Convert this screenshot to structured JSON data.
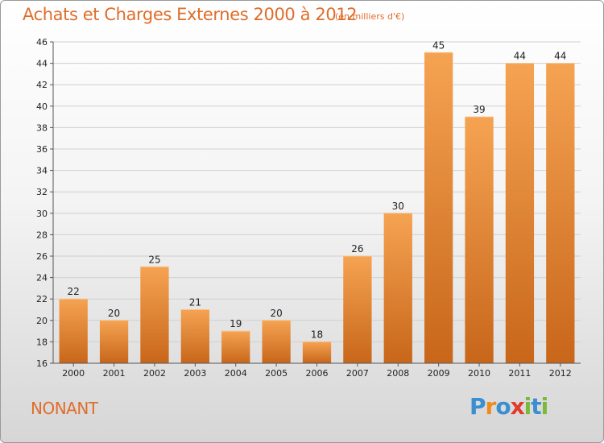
{
  "header": {
    "title": "Achats et Charges Externes 2000 à 2012",
    "subtitle": "(en milliers d'€)"
  },
  "footer": {
    "location": "NONANT",
    "logo_letters": [
      "P",
      "r",
      "o",
      "x",
      "i",
      "t",
      "i"
    ],
    "logo_colors": [
      "#3a8fd1",
      "#f08a1e",
      "#3a8fd1",
      "#e23b2e",
      "#7cb83a",
      "#3a8fd1",
      "#7cb83a"
    ]
  },
  "colors": {
    "bar_top": "#f5a352",
    "bar_bottom": "#c8661a",
    "accent": "#e06d2a"
  },
  "chart_data": {
    "type": "bar",
    "title": "Achats et Charges Externes 2000 à 2012",
    "subtitle": "(en milliers d'€)",
    "xlabel": "",
    "ylabel": "",
    "categories": [
      "2000",
      "2001",
      "2002",
      "2003",
      "2004",
      "2005",
      "2006",
      "2007",
      "2008",
      "2009",
      "2010",
      "2011",
      "2012"
    ],
    "values": [
      22,
      20,
      25,
      21,
      19,
      20,
      18,
      26,
      30,
      45,
      39,
      44,
      44
    ],
    "ylim": [
      16,
      46
    ],
    "yticks": [
      16,
      18,
      20,
      22,
      24,
      26,
      28,
      30,
      32,
      34,
      36,
      38,
      40,
      42,
      44,
      46
    ],
    "grid": true
  }
}
